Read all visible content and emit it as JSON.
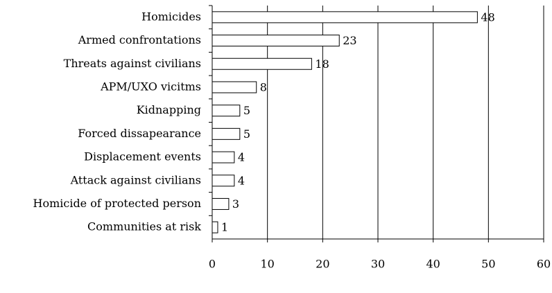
{
  "chart_data": {
    "type": "bar",
    "orientation": "horizontal",
    "categories": [
      "Homicides",
      "Armed confrontations",
      "Threats against civilians",
      "APM/UXO vicitms",
      "Kidnapping",
      "Forced dissapearance",
      "Displacement events",
      "Attack against civilians",
      "Homicide of protected person",
      "Communities at risk"
    ],
    "values": [
      48,
      23,
      18,
      8,
      5,
      5,
      4,
      4,
      3,
      1
    ],
    "color": "#ffffff",
    "edge_color": "#000000",
    "xlim": [
      0,
      60
    ],
    "xticks": [
      0,
      10,
      20,
      30,
      40,
      50,
      60
    ],
    "grid": true
  }
}
